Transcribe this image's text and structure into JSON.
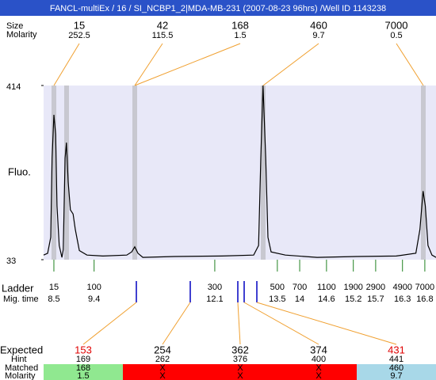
{
  "header": {
    "title": "FANCL-multiEx / 16 / SI_NCBP1_2|MDA-MB-231 (2007-08-23 96hrs) /Well ID 1143238"
  },
  "peak_labels": {
    "row_labels": [
      "Size",
      "Molarity"
    ],
    "sizes": [
      15,
      42,
      168,
      460,
      7000
    ],
    "molarity": [
      252.5,
      115.5,
      1.5,
      9.7,
      0.5
    ]
  },
  "chart_data": {
    "type": "line",
    "ylabel": "Fluo.",
    "ylim": [
      33,
      414
    ],
    "yticks": [
      33,
      414
    ],
    "xlim": [
      8.27,
      17.05
    ],
    "x": [
      8.27,
      8.36,
      8.43,
      8.46,
      8.5,
      8.54,
      8.57,
      8.62,
      8.68,
      8.71,
      8.75,
      8.78,
      8.82,
      8.87,
      8.93,
      8.98,
      9.07,
      9.24,
      9.6,
      10.13,
      10.24,
      10.31,
      10.38,
      10.49,
      11.2,
      12.26,
      12.97,
      13.08,
      13.13,
      13.18,
      13.24,
      13.29,
      13.36,
      13.68,
      14.39,
      15.28,
      16.16,
      16.6,
      16.69,
      16.76,
      16.81,
      16.87,
      16.96,
      17.05
    ],
    "series": [
      {
        "color": "#000000",
        "values": [
          43,
          47,
          82,
          255,
          350,
          307,
          151,
          64,
          38,
          55,
          255,
          289,
          203,
          142,
          133,
          99,
          53,
          43,
          41,
          43,
          50,
          61,
          47,
          38,
          40,
          41,
          43,
          64,
          255,
          414,
          255,
          82,
          50,
          43,
          38,
          40,
          41,
          47,
          99,
          183,
          151,
          64,
          43,
          38
        ]
      }
    ]
  },
  "ladder": {
    "row_labels": [
      "Ladder",
      "Mig. time"
    ],
    "sizes": [
      15,
      100,
      300,
      500,
      700,
      1100,
      1900,
      2900,
      4900,
      7000
    ],
    "mig_times": [
      8.5,
      9.4,
      12.1,
      13.5,
      14,
      14.6,
      15.2,
      15.7,
      16.3,
      16.8
    ]
  },
  "expected_table": {
    "row_labels": [
      "Expected",
      "Hint",
      "Matched",
      "Molarity"
    ],
    "expected": [
      153,
      254,
      362,
      374,
      431
    ],
    "expected_colors": [
      "#e00000",
      "#000000",
      "#000000",
      "#000000",
      "#e00000"
    ],
    "hint": [
      169,
      262,
      376,
      400,
      441
    ],
    "matched": [
      168,
      "X",
      "X",
      "X",
      460
    ],
    "molarity": [
      1.5,
      "X",
      "X",
      "X",
      9.7
    ]
  }
}
